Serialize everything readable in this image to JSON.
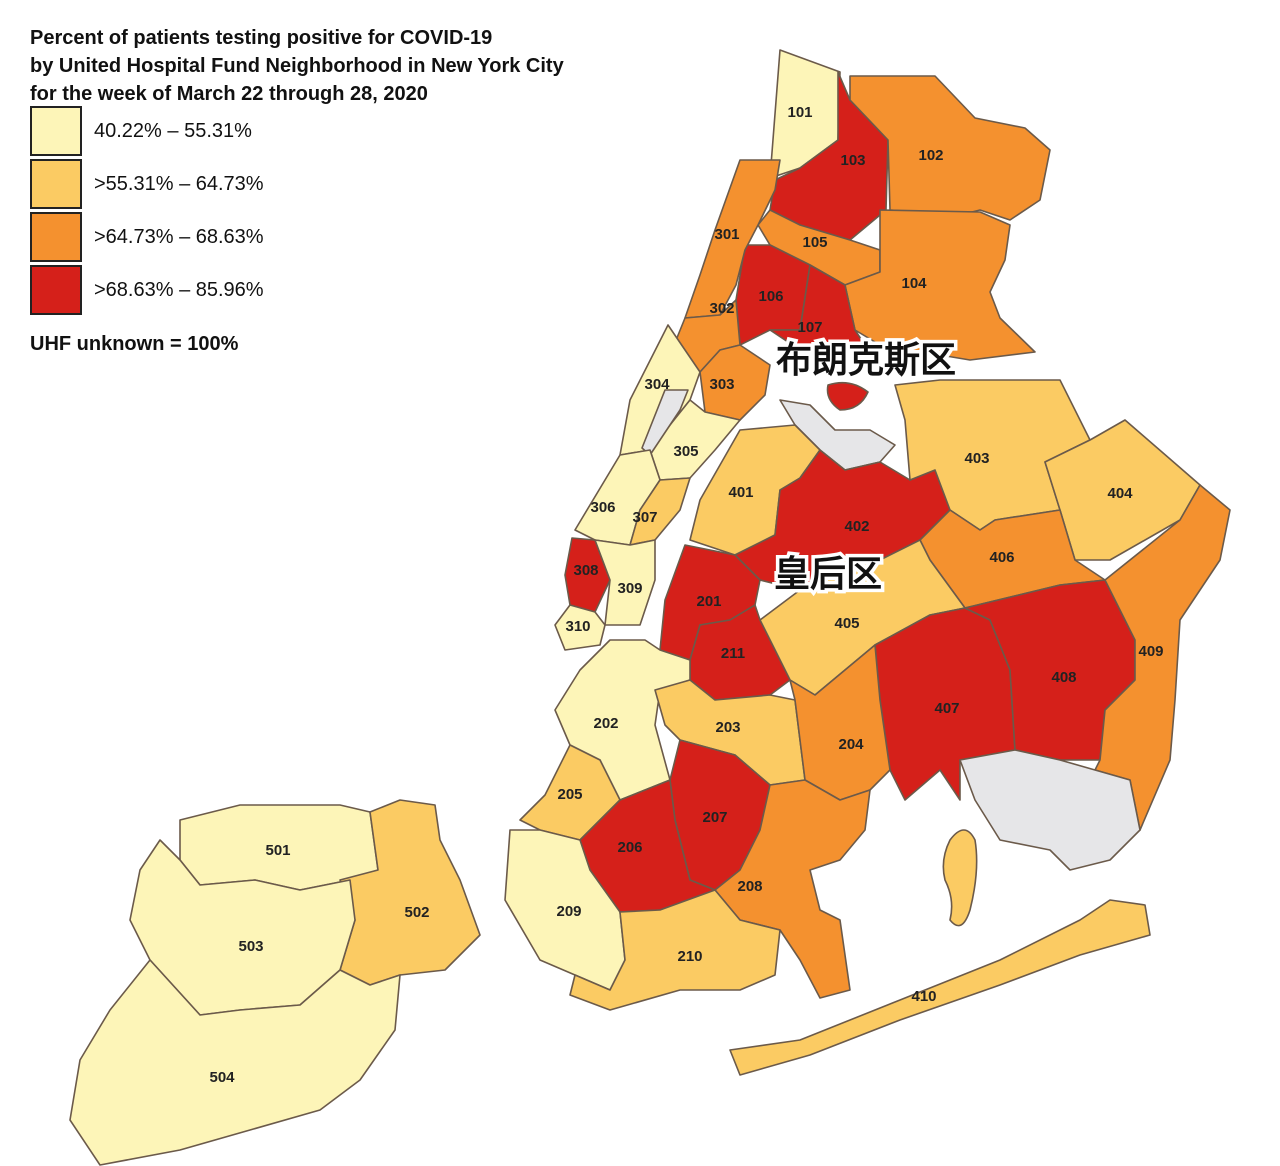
{
  "title": {
    "line1": "Percent of patients testing positive for COVID-19",
    "line2": "by United Hospital Fund Neighborhood in New York City",
    "line3": "for the week of March 22 through 28, 2020"
  },
  "legend": [
    {
      "label": "40.22% – 55.31%",
      "color": "#fdf5b8"
    },
    {
      "label": ">55.31% – 64.73%",
      "color": "#fbcb63"
    },
    {
      "label": ">64.73% – 68.63%",
      "color": "#f4912f"
    },
    {
      "label": ">68.63% – 85.96%",
      "color": "#d5201a"
    }
  ],
  "unknown_note": "UHF unknown = 100%",
  "unknown_color": "#e6e6e8",
  "boroughs": [
    {
      "name": "布朗克斯区"
    },
    {
      "name": "皇后区"
    }
  ],
  "neighborhoods": [
    {
      "id": "101",
      "bin": 0
    },
    {
      "id": "102",
      "bin": 2
    },
    {
      "id": "103",
      "bin": 3
    },
    {
      "id": "104",
      "bin": 2
    },
    {
      "id": "105",
      "bin": 2
    },
    {
      "id": "106",
      "bin": 3
    },
    {
      "id": "107",
      "bin": 3
    },
    {
      "id": "201",
      "bin": 3
    },
    {
      "id": "202",
      "bin": 0
    },
    {
      "id": "203",
      "bin": 1
    },
    {
      "id": "204",
      "bin": 2
    },
    {
      "id": "205",
      "bin": 1
    },
    {
      "id": "206",
      "bin": 3
    },
    {
      "id": "207",
      "bin": 3
    },
    {
      "id": "208",
      "bin": 2
    },
    {
      "id": "209",
      "bin": 0
    },
    {
      "id": "210",
      "bin": 1
    },
    {
      "id": "211",
      "bin": 3
    },
    {
      "id": "301",
      "bin": 2
    },
    {
      "id": "302",
      "bin": 2
    },
    {
      "id": "303",
      "bin": 2
    },
    {
      "id": "304",
      "bin": 0
    },
    {
      "id": "305",
      "bin": 0
    },
    {
      "id": "306",
      "bin": 0
    },
    {
      "id": "307",
      "bin": 1
    },
    {
      "id": "308",
      "bin": 3
    },
    {
      "id": "309",
      "bin": 0
    },
    {
      "id": "310",
      "bin": 0
    },
    {
      "id": "401",
      "bin": 1
    },
    {
      "id": "402",
      "bin": 3
    },
    {
      "id": "403",
      "bin": 1
    },
    {
      "id": "404",
      "bin": 1
    },
    {
      "id": "405",
      "bin": 1
    },
    {
      "id": "406",
      "bin": 2
    },
    {
      "id": "407",
      "bin": 3
    },
    {
      "id": "408",
      "bin": 3
    },
    {
      "id": "409",
      "bin": 2
    },
    {
      "id": "410",
      "bin": 1
    },
    {
      "id": "501",
      "bin": 0
    },
    {
      "id": "502",
      "bin": 1
    },
    {
      "id": "503",
      "bin": 0
    },
    {
      "id": "504",
      "bin": 0
    }
  ]
}
